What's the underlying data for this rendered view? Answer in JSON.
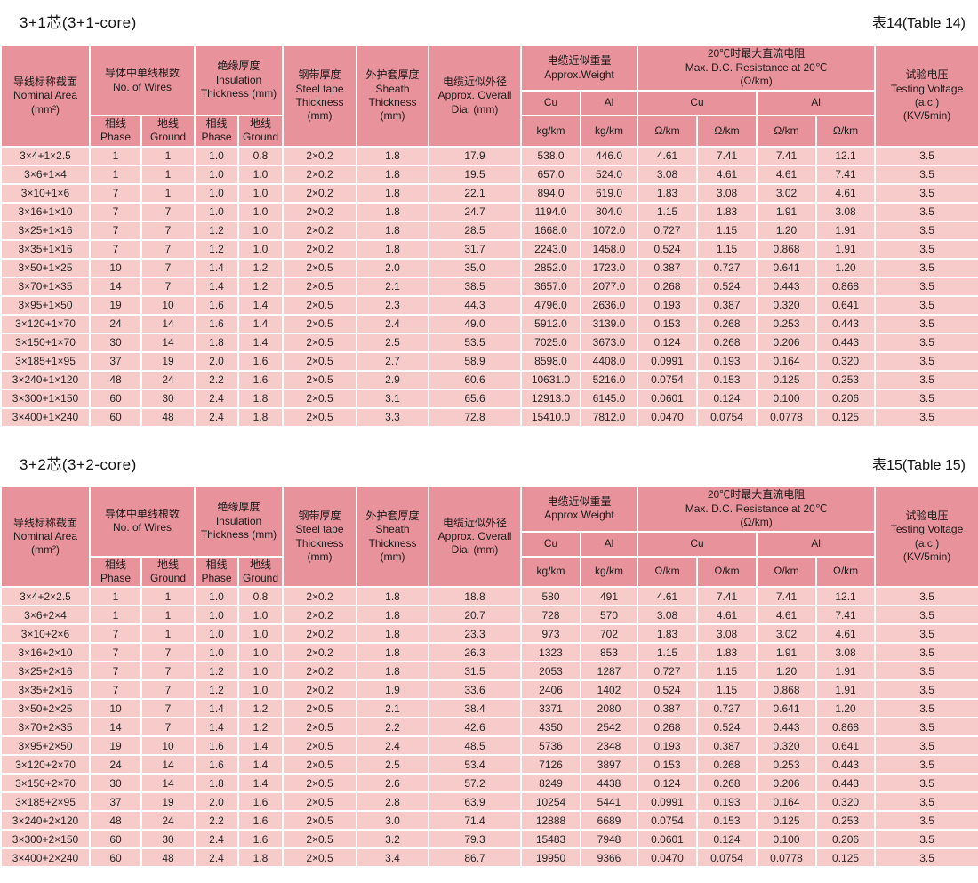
{
  "colors": {
    "header_bg": "#e8939b",
    "cell_bg": "#f8cbcb",
    "text": "#262626",
    "page_bg": "#ffffff"
  },
  "header": {
    "nominal_area": "导线标称截面\nNominal Area\n(mm²)",
    "wires_group": "导体中单线根数\nNo. of Wires",
    "insulation_group": "绝缘厚度\nInsulation\nThickness (mm)",
    "phase": "相线\nPhase",
    "ground": "地线\nGround",
    "steel_tape": "钢带厚度\nSteel tape\nThickness\n(mm)",
    "sheath": "外护套厚度\nSheath\nThickness\n(mm)",
    "overall_dia": "电缆近似外径\nApprox. Overall\nDia. (mm)",
    "weight_group": "电缆近似重量\nApprox.Weight",
    "resistance_group": "20℃时最大直流电阻\nMax. D.C. Resistance at 20℃\n(Ω/km)",
    "cu": "Cu",
    "al": "Al",
    "kg_km": "kg/km",
    "ohm_km": "Ω/km",
    "testing_voltage": "试验电压\nTesting Voltage\n(a.c.)\n(KV/5min)"
  },
  "sections": [
    {
      "title": "3+1芯(3+1-core)",
      "table_ref": "表14(Table 14)",
      "rows": [
        [
          "3×4+1×2.5",
          "1",
          "1",
          "1.0",
          "0.8",
          "2×0.2",
          "1.8",
          "17.9",
          "538.0",
          "446.0",
          "4.61",
          "7.41",
          "7.41",
          "12.1",
          "3.5"
        ],
        [
          "3×6+1×4",
          "1",
          "1",
          "1.0",
          "1.0",
          "2×0.2",
          "1.8",
          "19.5",
          "657.0",
          "524.0",
          "3.08",
          "4.61",
          "4.61",
          "7.41",
          "3.5"
        ],
        [
          "3×10+1×6",
          "7",
          "1",
          "1.0",
          "1.0",
          "2×0.2",
          "1.8",
          "22.1",
          "894.0",
          "619.0",
          "1.83",
          "3.08",
          "3.02",
          "4.61",
          "3.5"
        ],
        [
          "3×16+1×10",
          "7",
          "7",
          "1.0",
          "1.0",
          "2×0.2",
          "1.8",
          "24.7",
          "1194.0",
          "804.0",
          "1.15",
          "1.83",
          "1.91",
          "3.08",
          "3.5"
        ],
        [
          "3×25+1×16",
          "7",
          "7",
          "1.2",
          "1.0",
          "2×0.2",
          "1.8",
          "28.5",
          "1668.0",
          "1072.0",
          "0.727",
          "1.15",
          "1.20",
          "1.91",
          "3.5"
        ],
        [
          "3×35+1×16",
          "7",
          "7",
          "1.2",
          "1.0",
          "2×0.2",
          "1.8",
          "31.7",
          "2243.0",
          "1458.0",
          "0.524",
          "1.15",
          "0.868",
          "1.91",
          "3.5"
        ],
        [
          "3×50+1×25",
          "10",
          "7",
          "1.4",
          "1.2",
          "2×0.5",
          "2.0",
          "35.0",
          "2852.0",
          "1723.0",
          "0.387",
          "0.727",
          "0.641",
          "1.20",
          "3.5"
        ],
        [
          "3×70+1×35",
          "14",
          "7",
          "1.4",
          "1.2",
          "2×0.5",
          "2.1",
          "38.5",
          "3657.0",
          "2077.0",
          "0.268",
          "0.524",
          "0.443",
          "0.868",
          "3.5"
        ],
        [
          "3×95+1×50",
          "19",
          "10",
          "1.6",
          "1.4",
          "2×0.5",
          "2.3",
          "44.3",
          "4796.0",
          "2636.0",
          "0.193",
          "0.387",
          "0.320",
          "0.641",
          "3.5"
        ],
        [
          "3×120+1×70",
          "24",
          "14",
          "1.6",
          "1.4",
          "2×0.5",
          "2.4",
          "49.0",
          "5912.0",
          "3139.0",
          "0.153",
          "0.268",
          "0.253",
          "0.443",
          "3.5"
        ],
        [
          "3×150+1×70",
          "30",
          "14",
          "1.8",
          "1.4",
          "2×0.5",
          "2.5",
          "53.5",
          "7025.0",
          "3673.0",
          "0.124",
          "0.268",
          "0.206",
          "0.443",
          "3.5"
        ],
        [
          "3×185+1×95",
          "37",
          "19",
          "2.0",
          "1.6",
          "2×0.5",
          "2.7",
          "58.9",
          "8598.0",
          "4408.0",
          "0.0991",
          "0.193",
          "0.164",
          "0.320",
          "3.5"
        ],
        [
          "3×240+1×120",
          "48",
          "24",
          "2.2",
          "1.6",
          "2×0.5",
          "2.9",
          "60.6",
          "10631.0",
          "5216.0",
          "0.0754",
          "0.153",
          "0.125",
          "0.253",
          "3.5"
        ],
        [
          "3×300+1×150",
          "60",
          "30",
          "2.4",
          "1.8",
          "2×0.5",
          "3.1",
          "65.6",
          "12913.0",
          "6145.0",
          "0.0601",
          "0.124",
          "0.100",
          "0.206",
          "3.5"
        ],
        [
          "3×400+1×240",
          "60",
          "48",
          "2.4",
          "1.8",
          "2×0.5",
          "3.3",
          "72.8",
          "15410.0",
          "7812.0",
          "0.0470",
          "0.0754",
          "0.0778",
          "0.125",
          "3.5"
        ]
      ]
    },
    {
      "title": "3+2芯(3+2-core)",
      "table_ref": "表15(Table 15)",
      "rows": [
        [
          "3×4+2×2.5",
          "1",
          "1",
          "1.0",
          "0.8",
          "2×0.2",
          "1.8",
          "18.8",
          "580",
          "491",
          "4.61",
          "7.41",
          "7.41",
          "12.1",
          "3.5"
        ],
        [
          "3×6+2×4",
          "1",
          "1",
          "1.0",
          "1.0",
          "2×0.2",
          "1.8",
          "20.7",
          "728",
          "570",
          "3.08",
          "4.61",
          "4.61",
          "7.41",
          "3.5"
        ],
        [
          "3×10+2×6",
          "7",
          "1",
          "1.0",
          "1.0",
          "2×0.2",
          "1.8",
          "23.3",
          "973",
          "702",
          "1.83",
          "3.08",
          "3.02",
          "4.61",
          "3.5"
        ],
        [
          "3×16+2×10",
          "7",
          "7",
          "1.0",
          "1.0",
          "2×0.2",
          "1.8",
          "26.3",
          "1323",
          "853",
          "1.15",
          "1.83",
          "1.91",
          "3.08",
          "3.5"
        ],
        [
          "3×25+2×16",
          "7",
          "7",
          "1.2",
          "1.0",
          "2×0.2",
          "1.8",
          "31.5",
          "2053",
          "1287",
          "0.727",
          "1.15",
          "1.20",
          "1.91",
          "3.5"
        ],
        [
          "3×35+2×16",
          "7",
          "7",
          "1.2",
          "1.0",
          "2×0.2",
          "1.9",
          "33.6",
          "2406",
          "1402",
          "0.524",
          "1.15",
          "0.868",
          "1.91",
          "3.5"
        ],
        [
          "3×50+2×25",
          "10",
          "7",
          "1.4",
          "1.2",
          "2×0.5",
          "2.1",
          "38.4",
          "3371",
          "2080",
          "0.387",
          "0.727",
          "0.641",
          "1.20",
          "3.5"
        ],
        [
          "3×70+2×35",
          "14",
          "7",
          "1.4",
          "1.2",
          "2×0.5",
          "2.2",
          "42.6",
          "4350",
          "2542",
          "0.268",
          "0.524",
          "0.443",
          "0.868",
          "3.5"
        ],
        [
          "3×95+2×50",
          "19",
          "10",
          "1.6",
          "1.4",
          "2×0.5",
          "2.4",
          "48.5",
          "5736",
          "2348",
          "0.193",
          "0.387",
          "0.320",
          "0.641",
          "3.5"
        ],
        [
          "3×120+2×70",
          "24",
          "14",
          "1.6",
          "1.4",
          "2×0.5",
          "2.5",
          "53.4",
          "7126",
          "3897",
          "0.153",
          "0.268",
          "0.253",
          "0.443",
          "3.5"
        ],
        [
          "3×150+2×70",
          "30",
          "14",
          "1.8",
          "1.4",
          "2×0.5",
          "2.6",
          "57.2",
          "8249",
          "4438",
          "0.124",
          "0.268",
          "0.206",
          "0.443",
          "3.5"
        ],
        [
          "3×185+2×95",
          "37",
          "19",
          "2.0",
          "1.6",
          "2×0.5",
          "2.8",
          "63.9",
          "10254",
          "5441",
          "0.0991",
          "0.193",
          "0.164",
          "0.320",
          "3.5"
        ],
        [
          "3×240+2×120",
          "48",
          "24",
          "2.2",
          "1.6",
          "2×0.5",
          "3.0",
          "71.4",
          "12888",
          "6689",
          "0.0754",
          "0.153",
          "0.125",
          "0.253",
          "3.5"
        ],
        [
          "3×300+2×150",
          "60",
          "30",
          "2.4",
          "1.6",
          "2×0.5",
          "3.2",
          "79.3",
          "15483",
          "7948",
          "0.0601",
          "0.124",
          "0.100",
          "0.206",
          "3.5"
        ],
        [
          "3×400+2×240",
          "60",
          "48",
          "2.4",
          "1.8",
          "2×0.5",
          "3.4",
          "86.7",
          "19950",
          "9366",
          "0.0470",
          "0.0754",
          "0.0778",
          "0.125",
          "3.5"
        ]
      ]
    }
  ]
}
